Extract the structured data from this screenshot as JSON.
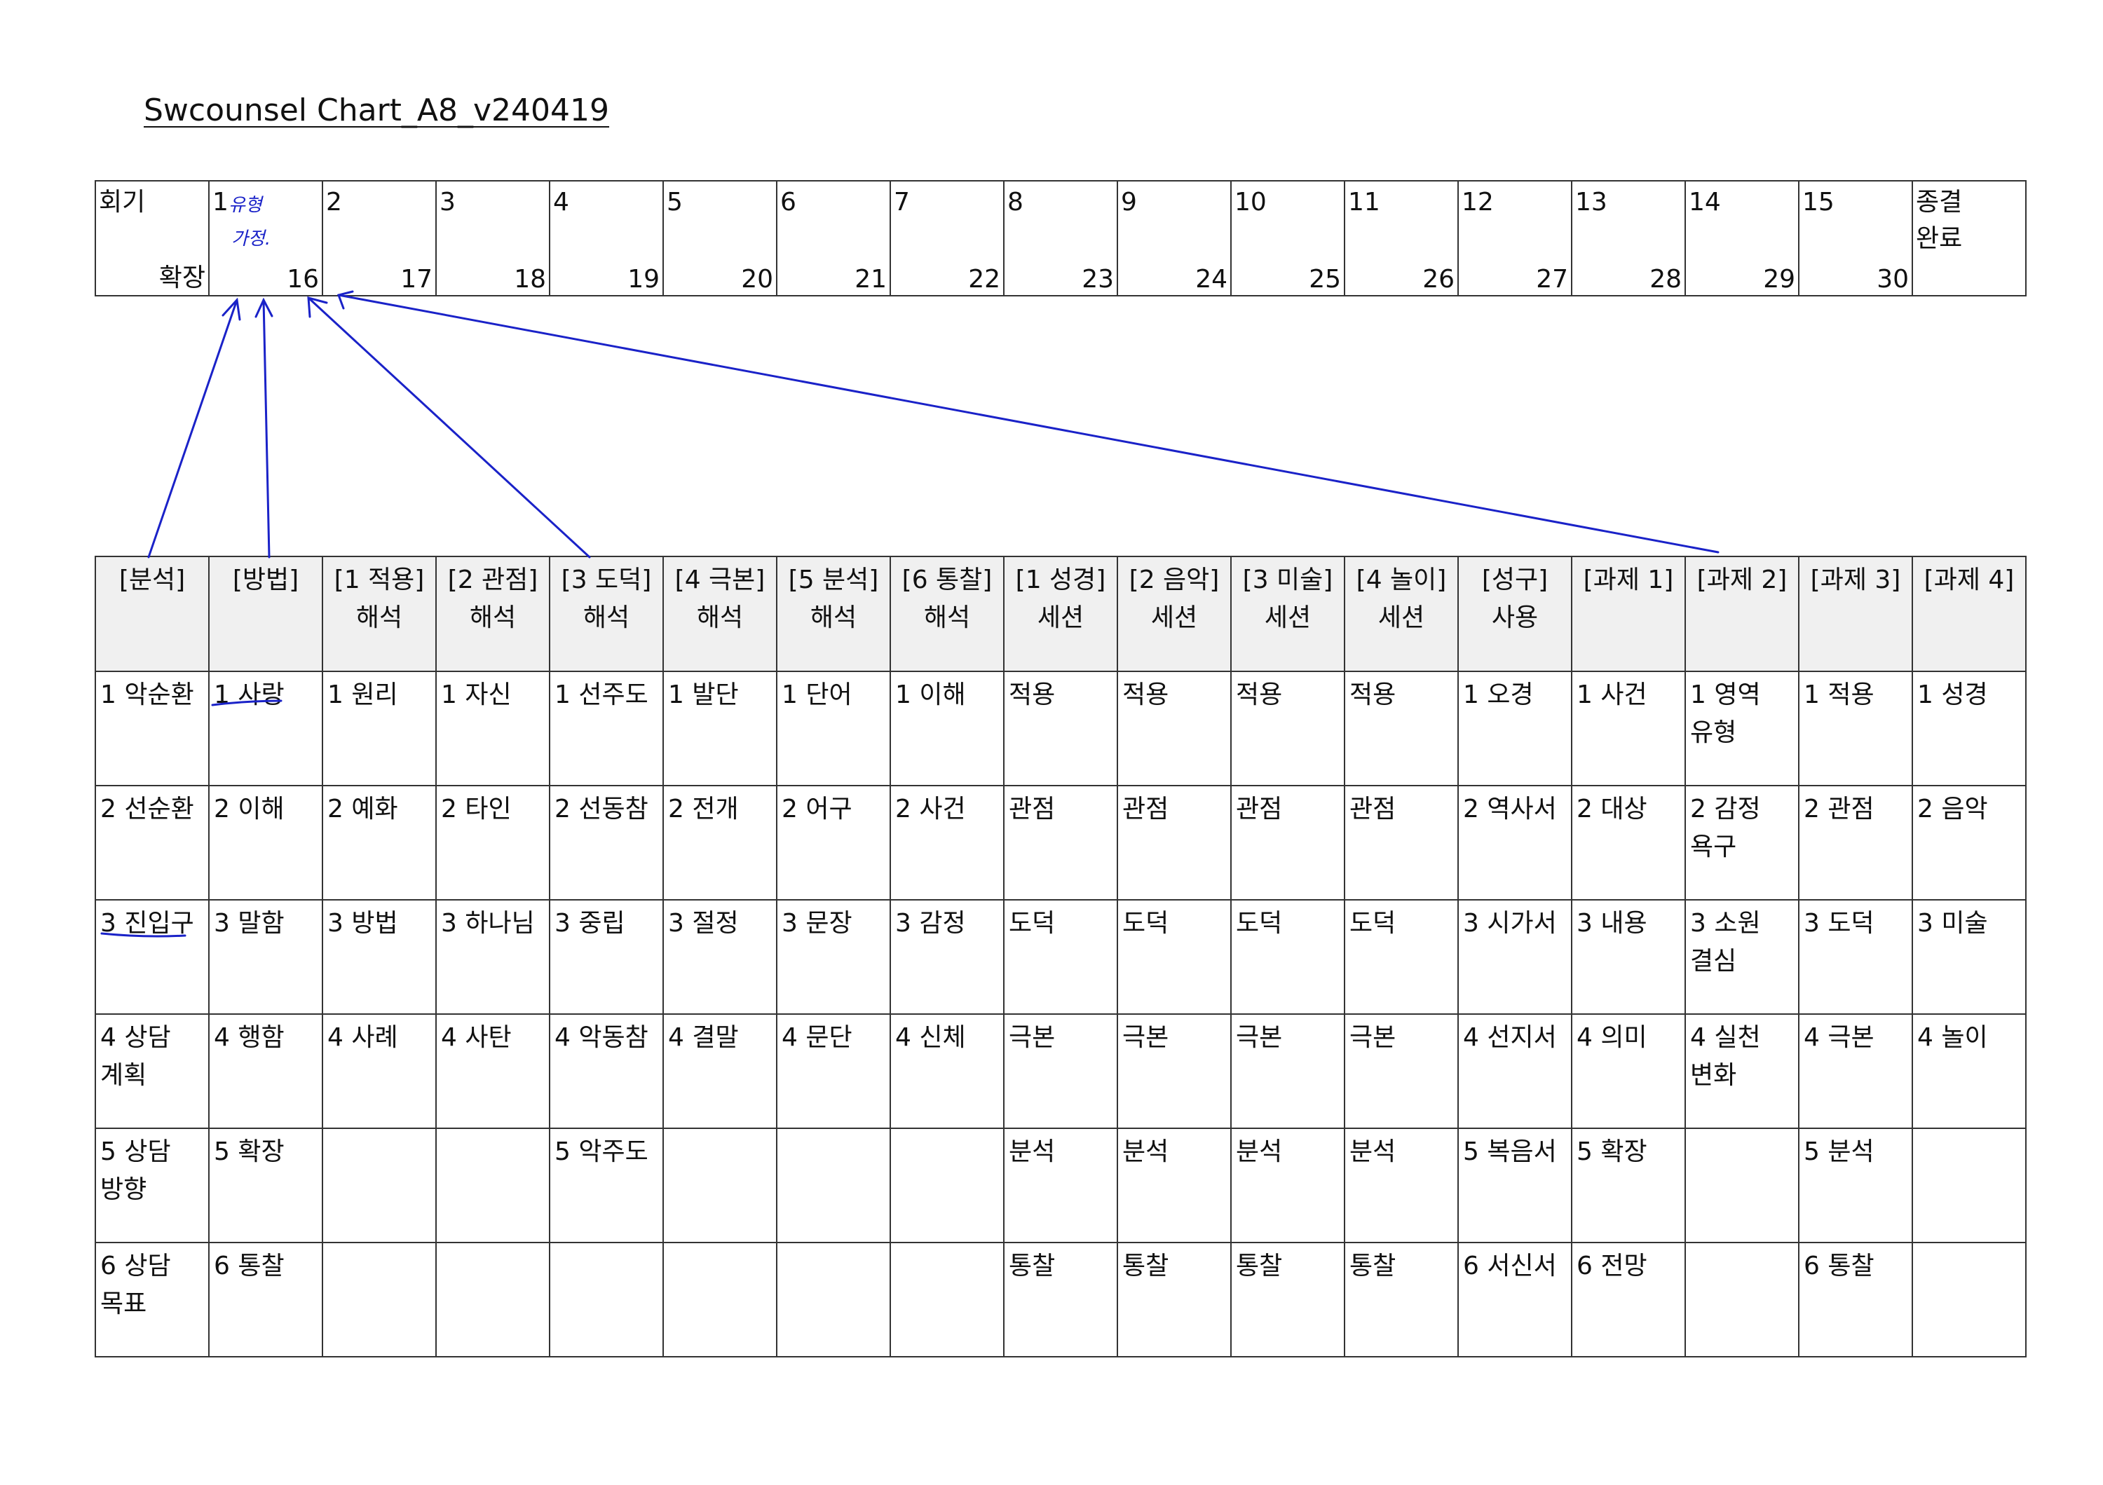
{
  "title": "Swcounsel Chart_A8_v240419",
  "session_table": {
    "row_label": "회기",
    "extension_label": "확장",
    "sessions": [
      {
        "top": "1",
        "bottom": "16"
      },
      {
        "top": "2",
        "bottom": "17"
      },
      {
        "top": "3",
        "bottom": "18"
      },
      {
        "top": "4",
        "bottom": "19"
      },
      {
        "top": "5",
        "bottom": "20"
      },
      {
        "top": "6",
        "bottom": "21"
      },
      {
        "top": "7",
        "bottom": "22"
      },
      {
        "top": "8",
        "bottom": "23"
      },
      {
        "top": "9",
        "bottom": "24"
      },
      {
        "top": "10",
        "bottom": "25"
      },
      {
        "top": "11",
        "bottom": "26"
      },
      {
        "top": "12",
        "bottom": "27"
      },
      {
        "top": "13",
        "bottom": "28"
      },
      {
        "top": "14",
        "bottom": "29"
      },
      {
        "top": "15",
        "bottom": "30"
      }
    ],
    "end": "종결\n완료"
  },
  "annotations": [
    "유형",
    "가정."
  ],
  "table": {
    "headers": [
      "[분석]",
      "[방법]",
      "[1 적용]\n해석",
      "[2 관점]\n해석",
      "[3 도덕]\n해석",
      "[4 극본]\n해석",
      "[5 분석]\n해석",
      "[6 통찰]\n해석",
      "[1 성경]\n세션",
      "[2 음악]\n세션",
      "[3 미술]\n세션",
      "[4 놀이]\n세션",
      "[성구]\n사용",
      "[과제 1]",
      "[과제 2]",
      "[과제 3]",
      "[과제 4]"
    ],
    "rows": [
      [
        "1 악순환",
        "1 사랑",
        "1 원리",
        "1 자신",
        "1 선주도",
        "1 발단",
        "1 단어",
        "1 이해",
        "적용",
        "적용",
        "적용",
        "적용",
        "1 오경",
        "1 사건",
        "1 영역\n유형",
        "1 적용",
        "1 성경"
      ],
      [
        "2 선순환",
        "2 이해",
        "2 예화",
        "2 타인",
        "2 선동참",
        "2 전개",
        "2 어구",
        "2 사건",
        "관점",
        "관점",
        "관점",
        "관점",
        "2 역사서",
        "2 대상",
        "2 감정\n욕구",
        "2 관점",
        "2 음악"
      ],
      [
        "3 진입구",
        "3 말함",
        "3 방법",
        "3 하나님",
        "3 중립",
        "3 절정",
        "3 문장",
        "3 감정",
        "도덕",
        "도덕",
        "도덕",
        "도덕",
        "3 시가서",
        "3 내용",
        "3 소원\n결심",
        "3 도덕",
        "3 미술"
      ],
      [
        "4 상담\n계획",
        "4 행함",
        "4 사례",
        "4 사탄",
        "4 악동참",
        "4 결말",
        "4 문단",
        "4 신체",
        "극본",
        "극본",
        "극본",
        "극본",
        "4 선지서",
        "4 의미",
        "4 실천\n변화",
        "4 극본",
        "4 놀이"
      ],
      [
        "5 상담\n방향",
        "5 확장",
        null,
        null,
        "5 악주도",
        null,
        null,
        null,
        "분석",
        "분석",
        "분석",
        "분석",
        "5 복음서",
        "5 확장",
        null,
        "5 분석",
        null
      ],
      [
        "6 상담\n목표",
        "6 통찰",
        null,
        null,
        null,
        null,
        null,
        null,
        "통찰",
        "통찰",
        "통찰",
        "통찰",
        "6 서신서",
        "6 전망",
        null,
        "6 통찰",
        null
      ]
    ]
  }
}
